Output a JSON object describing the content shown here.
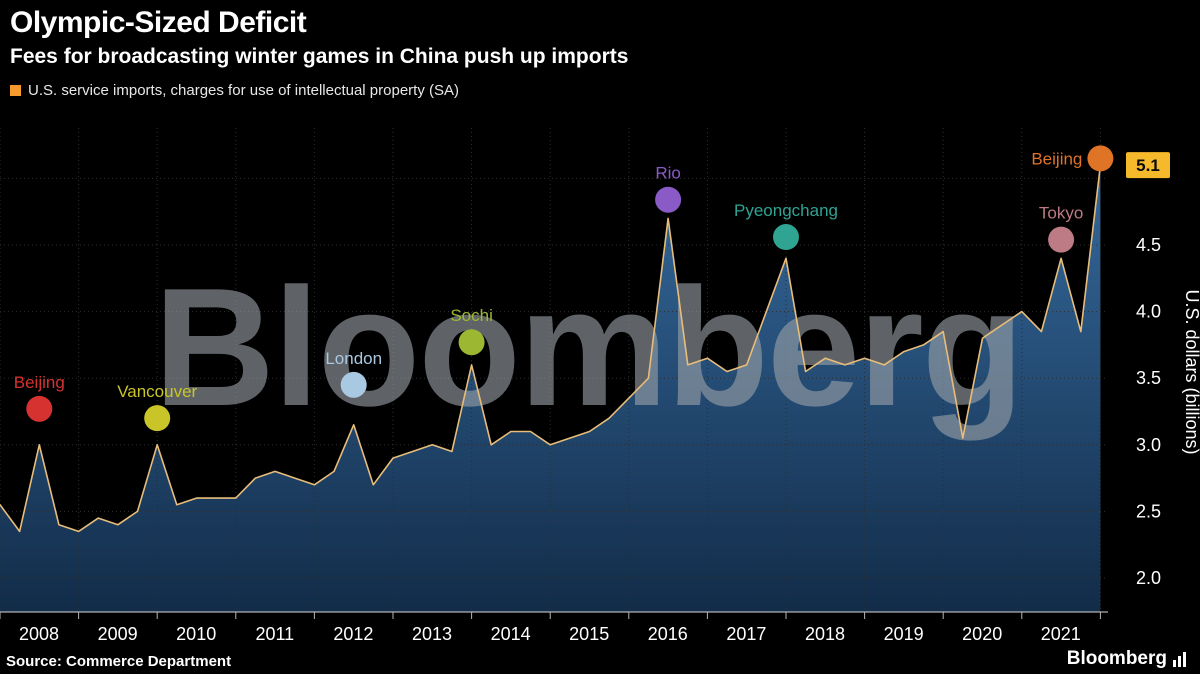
{
  "header": {
    "title": "Olympic-Sized Deficit",
    "subtitle": "Fees for broadcasting winter games in China push up imports",
    "legend": {
      "label": "U.S. service imports, charges for use of intellectual property (SA)",
      "swatch_color": "#f79b2f"
    }
  },
  "footer": {
    "source": "Source: Commerce Department",
    "logo_text": "Bloomberg"
  },
  "chart_data": {
    "type": "area",
    "title": "Olympic-Sized Deficit",
    "series_name": "U.S. service imports, charges for use of intellectual property (SA)",
    "x_start_year": 2008.0,
    "x_step_years": 0.25,
    "values": [
      2.55,
      2.35,
      3.0,
      2.4,
      2.35,
      2.45,
      2.4,
      2.5,
      3.0,
      2.55,
      2.6,
      2.6,
      2.6,
      2.75,
      2.8,
      2.75,
      2.7,
      2.8,
      3.15,
      2.7,
      2.9,
      2.95,
      3.0,
      2.95,
      3.6,
      3.0,
      3.1,
      3.1,
      3.0,
      3.05,
      3.1,
      3.2,
      3.35,
      3.5,
      4.7,
      3.6,
      3.65,
      3.55,
      3.6,
      4.0,
      4.4,
      3.55,
      3.65,
      3.6,
      3.65,
      3.6,
      3.7,
      3.75,
      3.85,
      3.05,
      3.8,
      3.9,
      4.0,
      3.85,
      4.4,
      3.85,
      5.1
    ],
    "ylabel": "U.S. dollars (billions)",
    "y_ticks": [
      2.0,
      2.5,
      3.0,
      3.5,
      4.0,
      4.5
    ],
    "x_tick_years": [
      2008,
      2009,
      2010,
      2011,
      2012,
      2013,
      2014,
      2015,
      2016,
      2017,
      2018,
      2019,
      2020,
      2021
    ],
    "ylim": [
      1.75,
      5.35
    ],
    "last_value": 5.1,
    "last_value_label": "5.1",
    "grid": true,
    "legend_position": "top-left",
    "line_color": "#e8bd7a",
    "area_top_color": "#35699c",
    "area_bottom_color": "#122c49",
    "badge_color": "#f6b92c",
    "watermark": "Bloomberg",
    "markers": [
      {
        "label": "Beijing",
        "t": 2008.5,
        "v": 3.27,
        "color": "#d63230",
        "label_side": "above"
      },
      {
        "label": "Vancouver",
        "t": 2010.0,
        "v": 3.2,
        "color": "#c9c529",
        "label_side": "above"
      },
      {
        "label": "London",
        "t": 2012.5,
        "v": 3.45,
        "color": "#a9c8e1",
        "label_side": "above"
      },
      {
        "label": "Sochi",
        "t": 2014.0,
        "v": 3.77,
        "color": "#9cb832",
        "label_side": "above"
      },
      {
        "label": "Rio",
        "t": 2016.5,
        "v": 4.84,
        "color": "#8a5bc7",
        "label_side": "above"
      },
      {
        "label": "Pyeongchang",
        "t": 2018.0,
        "v": 4.56,
        "color": "#2fa493",
        "label_side": "above"
      },
      {
        "label": "Tokyo",
        "t": 2021.5,
        "v": 4.54,
        "color": "#bd7b86",
        "label_side": "above"
      },
      {
        "label": "Beijing",
        "t": 2022.0,
        "v": 5.15,
        "color": "#df7326",
        "label_side": "left"
      }
    ]
  }
}
